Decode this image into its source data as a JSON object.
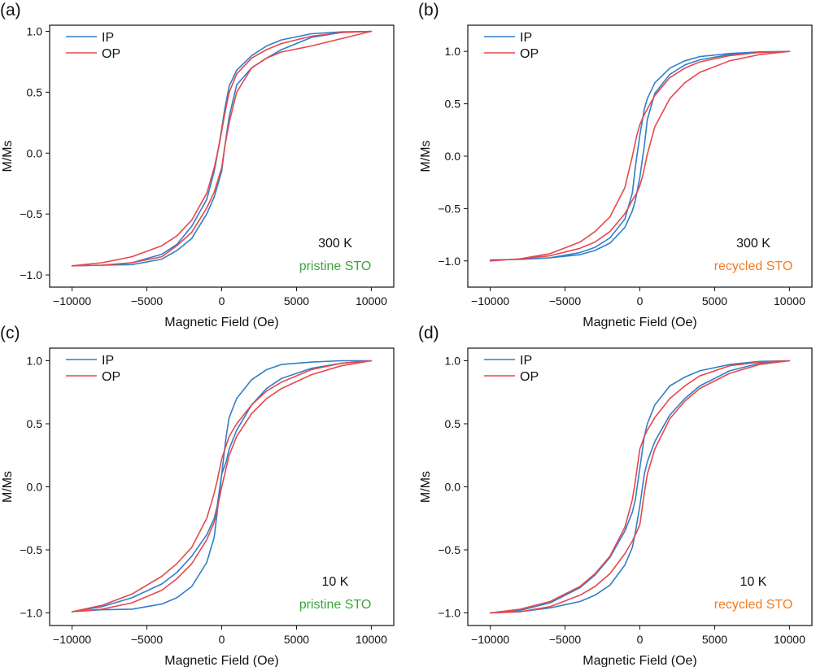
{
  "colors": {
    "IP": "#2f7fc8",
    "OP": "#e5484d",
    "pristine": "#3aa63a",
    "recycled": "#f07c22"
  },
  "chart_data": [
    {
      "panel": "(a)",
      "type": "line",
      "xlabel": "Magnetic Field (Oe)",
      "ylabel": "M/Ms",
      "xlim": [
        -11500,
        11500
      ],
      "ylim": [
        -1.1,
        1.05
      ],
      "xticks": [
        -10000,
        -5000,
        0,
        5000,
        10000
      ],
      "xtick_labels": [
        "−10000",
        "−5000",
        "0",
        "5000",
        "10000"
      ],
      "yticks": [
        -1.0,
        -0.5,
        0.0,
        0.5,
        1.0
      ],
      "ytick_labels": [
        "−1.0",
        "−0.5",
        "0.0",
        "0.5",
        "1.0"
      ],
      "legend": {
        "position": "top-left",
        "entries": [
          "IP",
          "OP"
        ]
      },
      "annotations": [
        {
          "text": "300 K",
          "color": "text"
        },
        {
          "text": "pristine STO",
          "color": "pristine"
        }
      ],
      "series": [
        {
          "name": "IP",
          "color": "IP",
          "x": [
            10000,
            8000,
            6000,
            4000,
            3000,
            2000,
            1000,
            500,
            200,
            0,
            -200,
            -500,
            -1000,
            -2000,
            -3000,
            -4000,
            -6000,
            -8000,
            -10000,
            -8000,
            -6000,
            -4000,
            -3000,
            -2000,
            -1000,
            -500,
            0,
            200,
            500,
            1000,
            2000,
            3000,
            4000,
            6000,
            8000,
            10000
          ],
          "y": [
            1.0,
            0.995,
            0.98,
            0.93,
            0.88,
            0.8,
            0.68,
            0.55,
            0.36,
            0.2,
            0.05,
            -0.15,
            -0.38,
            -0.6,
            -0.75,
            -0.83,
            -0.9,
            -0.92,
            -0.925,
            -0.92,
            -0.915,
            -0.87,
            -0.8,
            -0.7,
            -0.5,
            -0.36,
            -0.15,
            0.05,
            0.3,
            0.56,
            0.7,
            0.78,
            0.85,
            0.95,
            0.99,
            1.0
          ]
        },
        {
          "name": "OP",
          "color": "OP",
          "x": [
            10000,
            8000,
            6000,
            4000,
            3000,
            2000,
            1000,
            500,
            200,
            0,
            -200,
            -500,
            -1000,
            -2000,
            -3000,
            -4000,
            -6000,
            -8000,
            -10000,
            -8000,
            -6000,
            -4000,
            -3000,
            -2000,
            -1000,
            -500,
            0,
            200,
            500,
            1000,
            2000,
            3000,
            4000,
            6000,
            8000,
            10000
          ],
          "y": [
            1.0,
            0.99,
            0.96,
            0.9,
            0.85,
            0.78,
            0.65,
            0.5,
            0.32,
            0.18,
            0.05,
            -0.12,
            -0.33,
            -0.55,
            -0.68,
            -0.76,
            -0.85,
            -0.9,
            -0.925,
            -0.92,
            -0.9,
            -0.85,
            -0.76,
            -0.65,
            -0.45,
            -0.32,
            -0.12,
            0.05,
            0.25,
            0.5,
            0.7,
            0.78,
            0.83,
            0.88,
            0.94,
            1.0
          ]
        }
      ]
    },
    {
      "panel": "(b)",
      "type": "line",
      "xlabel": "Magnetic Field (Oe)",
      "ylabel": "M/Ms",
      "xlim": [
        -11500,
        11500
      ],
      "ylim": [
        -1.25,
        1.25
      ],
      "xticks": [
        -10000,
        -5000,
        0,
        5000,
        10000
      ],
      "xtick_labels": [
        "−10000",
        "−5000",
        "0",
        "5000",
        "10000"
      ],
      "yticks": [
        -1.0,
        -0.5,
        0.0,
        0.5,
        1.0
      ],
      "ytick_labels": [
        "−1.0",
        "−0.5",
        "0.0",
        "0.5",
        "1.0"
      ],
      "legend": {
        "position": "top-left",
        "entries": [
          "IP",
          "OP"
        ]
      },
      "annotations": [
        {
          "text": "300 K",
          "color": "text"
        },
        {
          "text": "recycled STO",
          "color": "recycled"
        }
      ],
      "series": [
        {
          "name": "IP",
          "color": "IP",
          "x": [
            10000,
            8000,
            6000,
            4000,
            3000,
            2000,
            1000,
            500,
            300,
            0,
            -300,
            -500,
            -1000,
            -2000,
            -3000,
            -4000,
            -6000,
            -8000,
            -10000,
            -8000,
            -6000,
            -4000,
            -3000,
            -2000,
            -1000,
            -500,
            -300,
            0,
            300,
            500,
            1000,
            2000,
            3000,
            4000,
            6000,
            8000,
            10000
          ],
          "y": [
            1.0,
            0.995,
            0.98,
            0.95,
            0.91,
            0.84,
            0.7,
            0.55,
            0.45,
            0.2,
            -0.1,
            -0.35,
            -0.6,
            -0.78,
            -0.87,
            -0.92,
            -0.97,
            -0.985,
            -0.99,
            -0.985,
            -0.97,
            -0.94,
            -0.9,
            -0.83,
            -0.68,
            -0.52,
            -0.42,
            -0.2,
            0.1,
            0.35,
            0.6,
            0.78,
            0.87,
            0.92,
            0.97,
            0.99,
            1.0
          ]
        },
        {
          "name": "OP",
          "color": "OP",
          "x": [
            10000,
            8000,
            6000,
            4000,
            3000,
            2000,
            1000,
            500,
            200,
            0,
            -200,
            -500,
            -1000,
            -2000,
            -3000,
            -4000,
            -6000,
            -8000,
            -10000,
            -8000,
            -6000,
            -4000,
            -3000,
            -2000,
            -1000,
            -500,
            -200,
            0,
            200,
            500,
            1000,
            2000,
            3000,
            4000,
            6000,
            8000,
            10000
          ],
          "y": [
            1.0,
            0.99,
            0.96,
            0.9,
            0.84,
            0.75,
            0.58,
            0.45,
            0.37,
            0.3,
            0.2,
            0.0,
            -0.3,
            -0.58,
            -0.72,
            -0.82,
            -0.93,
            -0.98,
            -1.0,
            -0.98,
            -0.95,
            -0.88,
            -0.82,
            -0.72,
            -0.55,
            -0.42,
            -0.35,
            -0.28,
            -0.18,
            0.02,
            0.28,
            0.55,
            0.7,
            0.8,
            0.91,
            0.97,
            1.0
          ]
        }
      ]
    },
    {
      "panel": "(c)",
      "type": "line",
      "xlabel": "Magnetic Field (Oe)",
      "ylabel": "M/Ms",
      "xlim": [
        -11500,
        11500
      ],
      "ylim": [
        -1.1,
        1.1
      ],
      "xticks": [
        -10000,
        -5000,
        0,
        5000,
        10000
      ],
      "xtick_labels": [
        "−10000",
        "−5000",
        "0",
        "5000",
        "10000"
      ],
      "yticks": [
        -1.0,
        -0.5,
        0.0,
        0.5,
        1.0
      ],
      "ytick_labels": [
        "−1.0",
        "−0.5",
        "0.0",
        "0.5",
        "1.0"
      ],
      "legend": {
        "position": "top-left",
        "entries": [
          "IP",
          "OP"
        ]
      },
      "annotations": [
        {
          "text": "10 K",
          "color": "text"
        },
        {
          "text": "pristine STO",
          "color": "pristine"
        }
      ],
      "series": [
        {
          "name": "IP",
          "color": "IP",
          "x": [
            10000,
            8000,
            6000,
            4000,
            3000,
            2000,
            1000,
            500,
            300,
            0,
            -300,
            -500,
            -1000,
            -2000,
            -3000,
            -4000,
            -6000,
            -8000,
            -10000,
            -8000,
            -6000,
            -4000,
            -3000,
            -2000,
            -1000,
            -500,
            -300,
            0,
            300,
            500,
            1000,
            2000,
            3000,
            4000,
            6000,
            8000,
            10000
          ],
          "y": [
            1.0,
            1.0,
            0.99,
            0.97,
            0.93,
            0.85,
            0.7,
            0.55,
            0.4,
            0.1,
            -0.15,
            -0.25,
            -0.38,
            -0.55,
            -0.68,
            -0.77,
            -0.88,
            -0.95,
            -0.99,
            -0.975,
            -0.97,
            -0.93,
            -0.88,
            -0.79,
            -0.6,
            -0.4,
            -0.2,
            0.1,
            0.2,
            0.3,
            0.45,
            0.65,
            0.78,
            0.86,
            0.94,
            0.98,
            1.0
          ]
        },
        {
          "name": "OP",
          "color": "OP",
          "x": [
            10000,
            8000,
            6000,
            4000,
            3000,
            2000,
            1000,
            500,
            300,
            0,
            -300,
            -500,
            -1000,
            -2000,
            -3000,
            -4000,
            -6000,
            -8000,
            -10000,
            -8000,
            -6000,
            -4000,
            -3000,
            -2000,
            -1000,
            -500,
            -300,
            0,
            300,
            500,
            1000,
            2000,
            3000,
            4000,
            6000,
            8000,
            10000
          ],
          "y": [
            1.0,
            0.98,
            0.93,
            0.83,
            0.76,
            0.65,
            0.5,
            0.4,
            0.33,
            0.22,
            0.05,
            -0.05,
            -0.25,
            -0.48,
            -0.61,
            -0.71,
            -0.85,
            -0.94,
            -0.99,
            -0.97,
            -0.92,
            -0.82,
            -0.73,
            -0.61,
            -0.42,
            -0.28,
            -0.18,
            0.0,
            0.15,
            0.25,
            0.4,
            0.58,
            0.7,
            0.78,
            0.89,
            0.96,
            1.0
          ]
        }
      ]
    },
    {
      "panel": "(d)",
      "type": "line",
      "xlabel": "Magnetic Field (Oe)",
      "ylabel": "M/Ms",
      "xlim": [
        -11500,
        11500
      ],
      "ylim": [
        -1.1,
        1.1
      ],
      "xticks": [
        -10000,
        -5000,
        0,
        5000,
        10000
      ],
      "xtick_labels": [
        "−10000",
        "−5000",
        "0",
        "5000",
        "10000"
      ],
      "yticks": [
        -1.0,
        -0.5,
        0.0,
        0.5,
        1.0
      ],
      "ytick_labels": [
        "−1.0",
        "−0.5",
        "0.0",
        "0.5",
        "1.0"
      ],
      "legend": {
        "position": "top-left",
        "entries": [
          "IP",
          "OP"
        ]
      },
      "annotations": [
        {
          "text": "10 K",
          "color": "text"
        },
        {
          "text": "recycled STO",
          "color": "recycled"
        }
      ],
      "series": [
        {
          "name": "IP",
          "color": "IP",
          "x": [
            10000,
            8000,
            6000,
            4000,
            3000,
            2000,
            1000,
            500,
            300,
            0,
            -300,
            -500,
            -1000,
            -2000,
            -3000,
            -4000,
            -6000,
            -8000,
            -10000,
            -8000,
            -6000,
            -4000,
            -3000,
            -2000,
            -1000,
            -500,
            -300,
            0,
            300,
            500,
            1000,
            2000,
            3000,
            4000,
            6000,
            8000,
            10000
          ],
          "y": [
            1.0,
            0.995,
            0.97,
            0.92,
            0.87,
            0.8,
            0.65,
            0.5,
            0.4,
            0.15,
            -0.1,
            -0.2,
            -0.35,
            -0.56,
            -0.7,
            -0.8,
            -0.92,
            -0.98,
            -1.0,
            -0.99,
            -0.96,
            -0.91,
            -0.86,
            -0.78,
            -0.62,
            -0.48,
            -0.36,
            -0.15,
            0.1,
            0.2,
            0.36,
            0.57,
            0.7,
            0.8,
            0.92,
            0.98,
            1.0
          ]
        },
        {
          "name": "OP",
          "color": "OP",
          "x": [
            10000,
            8000,
            6000,
            4000,
            3000,
            2000,
            1000,
            500,
            300,
            0,
            -300,
            -500,
            -1000,
            -2000,
            -3000,
            -4000,
            -6000,
            -8000,
            -10000,
            -8000,
            -6000,
            -4000,
            -3000,
            -2000,
            -1000,
            -500,
            -300,
            0,
            300,
            500,
            1000,
            2000,
            3000,
            4000,
            6000,
            8000,
            10000
          ],
          "y": [
            1.0,
            0.99,
            0.96,
            0.88,
            0.8,
            0.7,
            0.55,
            0.45,
            0.4,
            0.3,
            0.05,
            -0.1,
            -0.32,
            -0.55,
            -0.69,
            -0.79,
            -0.91,
            -0.97,
            -1.0,
            -0.99,
            -0.95,
            -0.86,
            -0.79,
            -0.69,
            -0.53,
            -0.43,
            -0.38,
            -0.3,
            -0.05,
            0.1,
            0.3,
            0.54,
            0.68,
            0.78,
            0.9,
            0.97,
            1.0
          ]
        }
      ]
    }
  ]
}
